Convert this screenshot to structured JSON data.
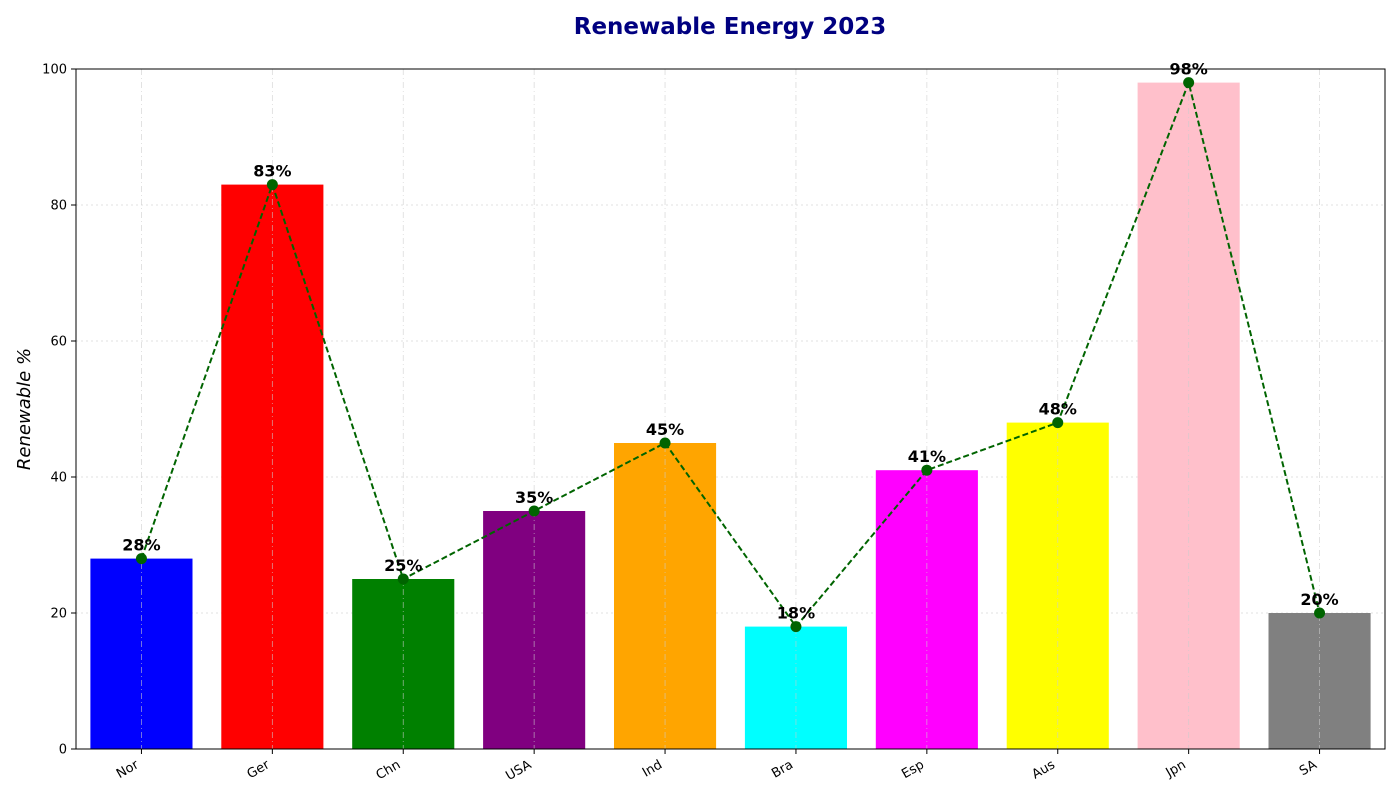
{
  "chart_data": {
    "type": "bar",
    "title": "Renewable Energy 2023",
    "xlabel": "",
    "ylabel": "Renewable %",
    "categories": [
      "Nor",
      "Ger",
      "Chn",
      "USA",
      "Ind",
      "Bra",
      "Esp",
      "Aus",
      "Jpn",
      "SA"
    ],
    "values": [
      28,
      83,
      25,
      35,
      45,
      18,
      41,
      48,
      98,
      20
    ],
    "data_labels": [
      "28%",
      "83%",
      "25%",
      "35%",
      "45%",
      "18%",
      "41%",
      "48%",
      "98%",
      "20%"
    ],
    "bar_colors": [
      "#0000ff",
      "#ff0000",
      "#008000",
      "#800080",
      "#ffa500",
      "#00ffff",
      "#ff00ff",
      "#ffff00",
      "#ffc0cb",
      "#808080"
    ],
    "overlay_line": {
      "style": "dashed",
      "marker": "circle",
      "color": "#006400"
    },
    "ylim": [
      0,
      100
    ],
    "yticks": [
      0,
      20,
      40,
      60,
      80,
      100
    ],
    "grid": true,
    "legend": "none"
  }
}
